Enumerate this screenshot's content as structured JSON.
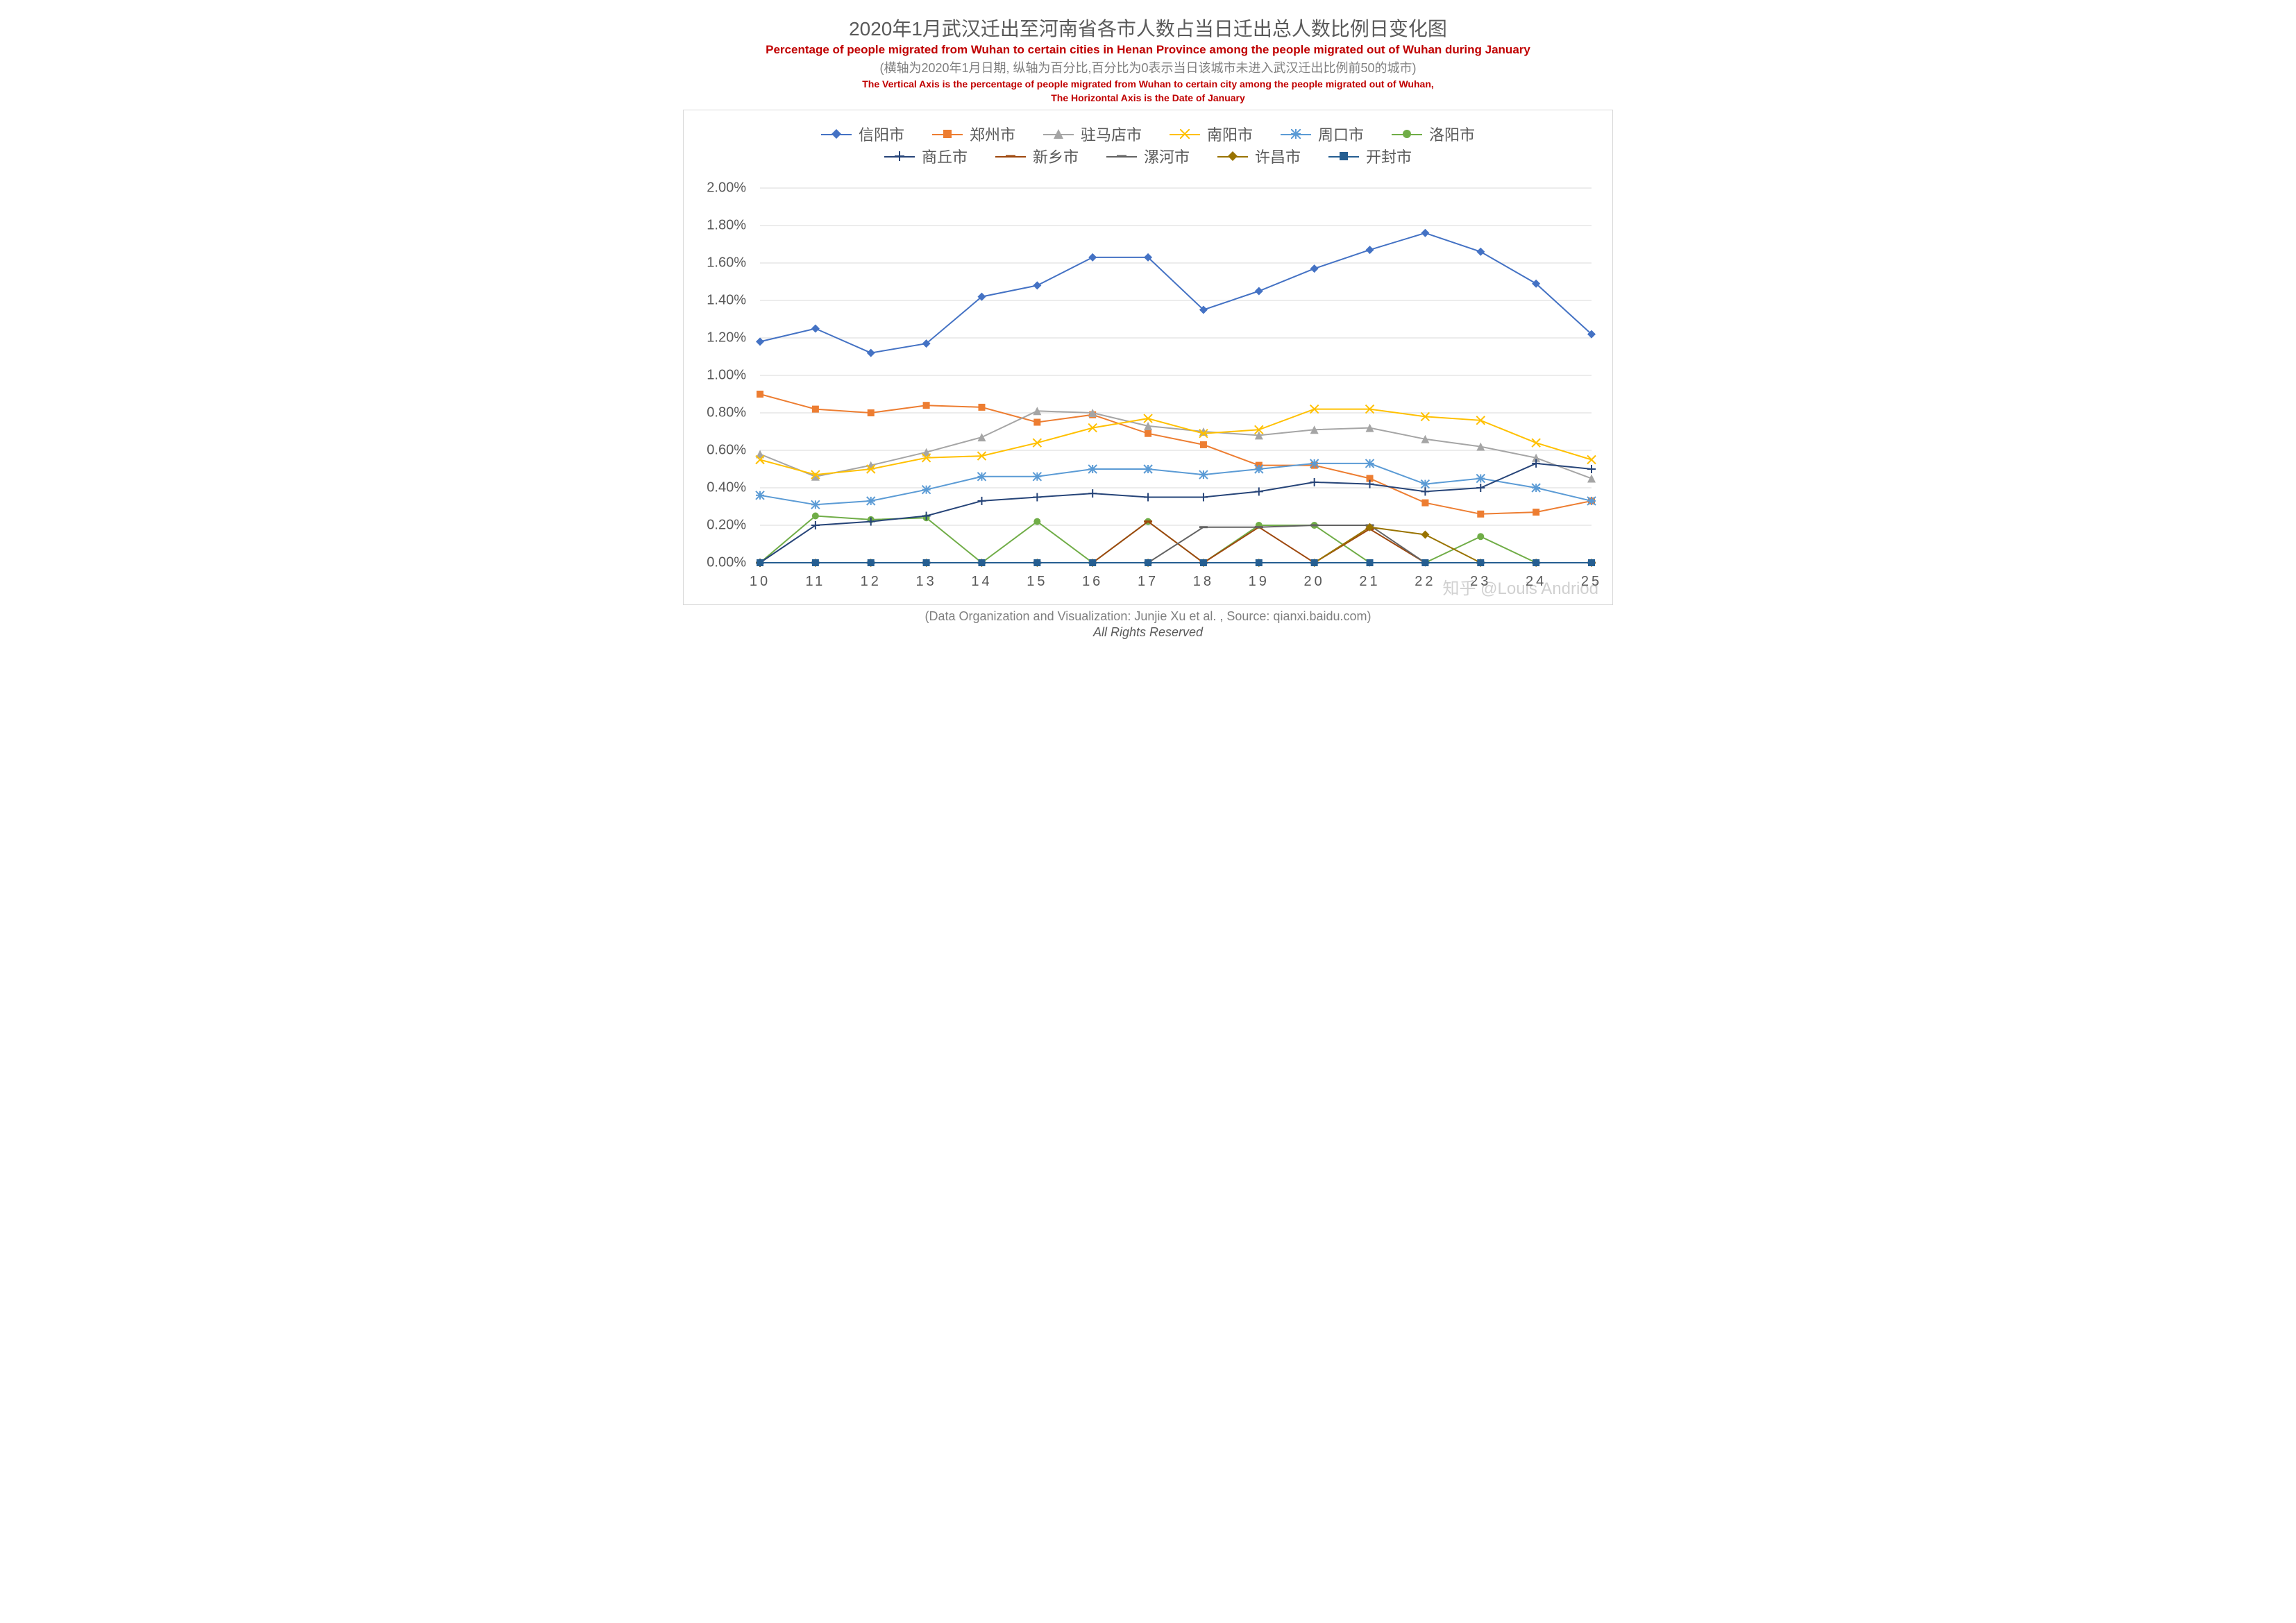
{
  "title_cn": "2020年1月武汉迁出至河南省各市人数占当日迁出总人数比例日变化图",
  "title_en": "Percentage of people migrated from Wuhan to certain cities in Henan Province among the people migrated out of Wuhan during January",
  "subtitle_cn": "(横轴为2020年1月日期, 纵轴为百分比,百分比为0表示当日该城市未进入武汉迁出比例前50的城市)",
  "subtitle_en_line1": "The Vertical Axis is the percentage of people migrated from Wuhan to certain city  among the people migrated out of Wuhan,",
  "subtitle_en_line2": "The Horizontal Axis is the Date of January",
  "footer_source": "(Data Organization and Visualization: Junjie Xu et al. , Source: qianxi.baidu.com)",
  "footer_rights": "All Rights Reserved",
  "watermark": "知乎 @Louis Andriod",
  "chart": {
    "type": "line",
    "x_values": [
      10,
      11,
      12,
      13,
      14,
      15,
      16,
      17,
      18,
      19,
      20,
      21,
      22,
      23,
      24,
      25
    ],
    "ylim": [
      0,
      2.0
    ],
    "ytick_step": 0.2,
    "y_format_suffix": "%",
    "y_format_decimals": 2,
    "background_color": "#ffffff",
    "grid_color": "#d9d9d9",
    "axis_color": "#bfbfbf",
    "plot_border_color": "#d9d9d9",
    "legend_fontsize": 22,
    "axis_label_fontsize": 20,
    "line_width": 2,
    "marker_size": 12,
    "series": [
      {
        "name": "信阳市",
        "color": "#4472c4",
        "marker": "diamond",
        "values": [
          1.18,
          1.25,
          1.12,
          1.17,
          1.42,
          1.48,
          1.63,
          1.63,
          1.35,
          1.45,
          1.57,
          1.67,
          1.76,
          1.66,
          1.49,
          1.22
        ]
      },
      {
        "name": "郑州市",
        "color": "#ed7d31",
        "marker": "square",
        "values": [
          0.9,
          0.82,
          0.8,
          0.84,
          0.83,
          0.75,
          0.79,
          0.69,
          0.63,
          0.52,
          0.52,
          0.45,
          0.32,
          0.26,
          0.27,
          0.33
        ]
      },
      {
        "name": "驻马店市",
        "color": "#a5a5a5",
        "marker": "triangle",
        "values": [
          0.58,
          0.46,
          0.52,
          0.59,
          0.67,
          0.81,
          0.8,
          0.73,
          0.7,
          0.68,
          0.71,
          0.72,
          0.66,
          0.62,
          0.56,
          0.45
        ]
      },
      {
        "name": "南阳市",
        "color": "#ffc000",
        "marker": "x",
        "values": [
          0.55,
          0.47,
          0.5,
          0.56,
          0.57,
          0.64,
          0.72,
          0.77,
          0.69,
          0.71,
          0.82,
          0.82,
          0.78,
          0.76,
          0.64,
          0.55
        ]
      },
      {
        "name": "周口市",
        "color": "#5b9bd5",
        "marker": "asterisk",
        "values": [
          0.36,
          0.31,
          0.33,
          0.39,
          0.46,
          0.46,
          0.5,
          0.5,
          0.47,
          0.5,
          0.53,
          0.53,
          0.42,
          0.45,
          0.4,
          0.33
        ]
      },
      {
        "name": "洛阳市",
        "color": "#70ad47",
        "marker": "circle",
        "values": [
          0.0,
          0.25,
          0.23,
          0.24,
          0.0,
          0.22,
          0.0,
          0.22,
          0.0,
          0.2,
          0.2,
          0.0,
          0.0,
          0.14,
          0.0,
          0.0
        ]
      },
      {
        "name": "商丘市",
        "color": "#264478",
        "marker": "plus",
        "values": [
          0.0,
          0.2,
          0.22,
          0.25,
          0.33,
          0.35,
          0.37,
          0.35,
          0.35,
          0.38,
          0.43,
          0.42,
          0.38,
          0.4,
          0.53,
          0.5
        ]
      },
      {
        "name": "新乡市",
        "color": "#9e480e",
        "marker": "dash",
        "values": [
          0.0,
          0.0,
          0.0,
          0.0,
          0.0,
          0.0,
          0.0,
          0.22,
          0.0,
          0.19,
          0.0,
          0.18,
          0.0,
          0.0,
          0.0,
          0.0
        ]
      },
      {
        "name": "漯河市",
        "color": "#636363",
        "marker": "dash",
        "values": [
          0.0,
          0.0,
          0.0,
          0.0,
          0.0,
          0.0,
          0.0,
          0.0,
          0.19,
          0.19,
          0.2,
          0.2,
          0.0,
          0.0,
          0.0,
          0.0
        ]
      },
      {
        "name": "许昌市",
        "color": "#997300",
        "marker": "diamond",
        "values": [
          0.0,
          0.0,
          0.0,
          0.0,
          0.0,
          0.0,
          0.0,
          0.0,
          0.0,
          0.0,
          0.0,
          0.19,
          0.15,
          0.0,
          0.0,
          0.0
        ]
      },
      {
        "name": "开封市",
        "color": "#255e91",
        "marker": "square",
        "values": [
          0.0,
          0.0,
          0.0,
          0.0,
          0.0,
          0.0,
          0.0,
          0.0,
          0.0,
          0.0,
          0.0,
          0.0,
          0.0,
          0.0,
          0.0,
          0.0
        ]
      }
    ]
  }
}
